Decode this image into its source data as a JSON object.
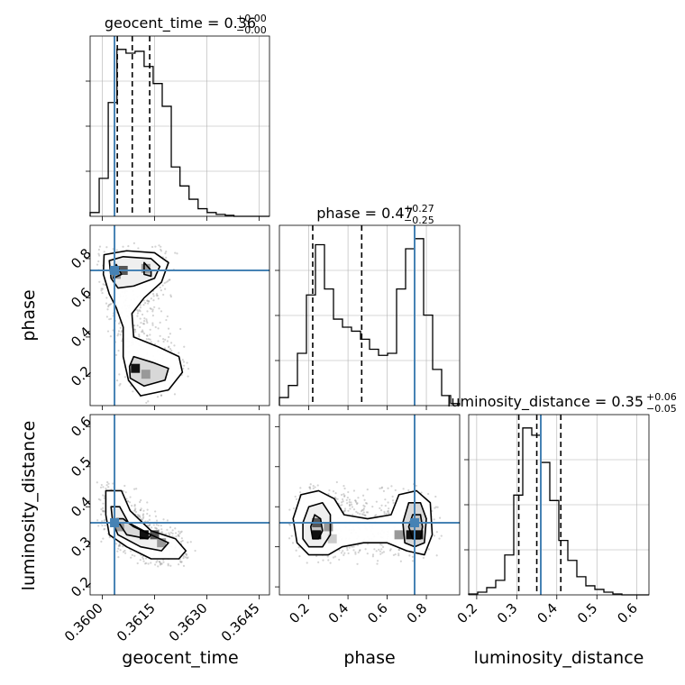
{
  "figure": {
    "panel_titles": {
      "geocent_time": {
        "label": "geocent_time = 0.36",
        "sup": "+0.00",
        "sub": "−0.00"
      },
      "phase": {
        "label": "phase = 0.47",
        "sup": "+0.27",
        "sub": "−0.25"
      },
      "luminosity_distance": {
        "label": "luminosity_distance = 0.35",
        "sup": "+0.06",
        "sub": "−0.05"
      }
    },
    "axis_labels": {
      "x": [
        "geocent_time",
        "phase",
        "luminosity_distance"
      ],
      "y": [
        "phase",
        "luminosity_distance"
      ]
    },
    "colors": {
      "truth": "#4682b4",
      "hist": "#000000",
      "grid": "#b0b0b0",
      "points": "#808080"
    }
  },
  "chart_data": [
    {
      "type": "histogram",
      "parameter": "geocent_time",
      "range": [
        0.35965,
        0.3648
      ],
      "ticks": [
        0.36,
        0.3615,
        0.363,
        0.3645
      ],
      "tick_labels": [
        "0.3600",
        "0.3615",
        "0.3630",
        "0.3645"
      ],
      "bin_edges": [
        0.35965,
        0.35991,
        0.36017,
        0.36042,
        0.36068,
        0.36094,
        0.3612,
        0.36146,
        0.36172,
        0.36198,
        0.36223,
        0.36249,
        0.36275,
        0.36301,
        0.36327,
        0.36353,
        0.36378,
        0.36404,
        0.3643,
        0.36456,
        0.3648
      ],
      "counts": [
        2,
        20,
        60,
        88,
        86,
        87,
        79,
        70,
        58,
        26,
        16,
        9,
        4,
        2,
        1,
        0.5,
        0,
        0,
        0,
        0
      ],
      "quantiles": [
        0.36043,
        0.36086,
        0.36136
      ],
      "truth": 0.36035,
      "grid": true
    },
    {
      "type": "histogram",
      "parameter": "phase",
      "range": [
        0.05,
        0.97
      ],
      "ticks": [
        0.2,
        0.4,
        0.6,
        0.8
      ],
      "tick_labels": [
        "0.2",
        "0.4",
        "0.6",
        "0.8"
      ],
      "bin_edges": [
        0.05,
        0.096,
        0.142,
        0.188,
        0.234,
        0.28,
        0.326,
        0.372,
        0.418,
        0.464,
        0.51,
        0.556,
        0.602,
        0.648,
        0.694,
        0.74,
        0.786,
        0.832,
        0.878,
        0.924,
        0.97
      ],
      "counts": [
        4,
        10,
        26,
        55,
        80,
        58,
        43,
        39,
        37,
        33,
        28,
        25,
        26,
        58,
        78,
        83,
        45,
        18,
        5,
        1
      ],
      "quantiles": [
        0.22,
        0.47,
        0.74
      ],
      "truth": 0.74,
      "grid": true
    },
    {
      "type": "histogram",
      "parameter": "luminosity_distance",
      "range": [
        0.18,
        0.63
      ],
      "ticks": [
        0.2,
        0.3,
        0.4,
        0.5,
        0.6
      ],
      "tick_labels": [
        "0.2",
        "0.3",
        "0.4",
        "0.5",
        "0.6"
      ],
      "bin_edges": [
        0.18,
        0.2025,
        0.225,
        0.2475,
        0.27,
        0.2925,
        0.315,
        0.3375,
        0.36,
        0.3825,
        0.405,
        0.4275,
        0.45,
        0.4725,
        0.495,
        0.5175,
        0.54,
        0.5625,
        0.585,
        0.6075,
        0.63
      ],
      "counts": [
        0.5,
        1.5,
        4,
        8,
        22,
        55,
        92,
        88,
        73,
        52,
        30,
        19,
        10,
        5,
        3,
        1.5,
        0.5,
        0,
        0,
        0
      ],
      "quantiles": [
        0.305,
        0.35,
        0.41
      ],
      "truth": 0.36,
      "grid": true
    },
    {
      "type": "scatter_density",
      "x_parameter": "geocent_time",
      "y_parameter": "phase",
      "xlim": [
        0.35965,
        0.3648
      ],
      "ylim": [
        0.05,
        0.97
      ],
      "y_ticks": [
        0.2,
        0.4,
        0.6,
        0.8
      ],
      "y_tick_labels": [
        "0.2",
        "0.4",
        "0.6",
        "0.8"
      ],
      "truth": [
        0.36035,
        0.74
      ],
      "contours": [
        [
          [
            0.36005,
            0.82
          ],
          [
            0.3607,
            0.84
          ],
          [
            0.3615,
            0.83
          ],
          [
            0.3619,
            0.78
          ],
          [
            0.3617,
            0.68
          ],
          [
            0.3612,
            0.6
          ],
          [
            0.36085,
            0.52
          ],
          [
            0.3609,
            0.4
          ],
          [
            0.3616,
            0.35
          ],
          [
            0.3622,
            0.3
          ],
          [
            0.3623,
            0.22
          ],
          [
            0.3619,
            0.13
          ],
          [
            0.3611,
            0.1
          ],
          [
            0.36075,
            0.18
          ],
          [
            0.3606,
            0.3
          ],
          [
            0.3606,
            0.45
          ],
          [
            0.3604,
            0.55
          ],
          [
            0.3602,
            0.62
          ],
          [
            0.36003,
            0.72
          ]
        ],
        [
          [
            0.3602,
            0.79
          ],
          [
            0.3606,
            0.81
          ],
          [
            0.3614,
            0.8
          ],
          [
            0.36165,
            0.76
          ],
          [
            0.3615,
            0.7
          ],
          [
            0.3609,
            0.66
          ],
          [
            0.36045,
            0.65
          ],
          [
            0.36025,
            0.7
          ]
        ],
        [
          [
            0.3609,
            0.3
          ],
          [
            0.36145,
            0.27
          ],
          [
            0.3619,
            0.24
          ],
          [
            0.3618,
            0.18
          ],
          [
            0.3612,
            0.15
          ],
          [
            0.3608,
            0.19
          ],
          [
            0.36078,
            0.25
          ]
        ],
        [
          [
            0.36032,
            0.7
          ],
          [
            0.3604,
            0.77
          ],
          [
            0.36055,
            0.72
          ]
        ],
        [
          [
            0.3612,
            0.78
          ],
          [
            0.3614,
            0.74
          ],
          [
            0.3614,
            0.71
          ],
          [
            0.3612,
            0.72
          ]
        ]
      ],
      "density_blocks": [
        [
          0.3606,
          0.74,
          3
        ],
        [
          0.36125,
          0.75,
          2
        ],
        [
          0.36095,
          0.24,
          4
        ],
        [
          0.36125,
          0.21,
          2
        ],
        [
          0.3604,
          0.72,
          2
        ]
      ],
      "grid": false
    },
    {
      "type": "scatter_density",
      "x_parameter": "geocent_time",
      "y_parameter": "luminosity_distance",
      "xlim": [
        0.35965,
        0.3648
      ],
      "ylim": [
        0.18,
        0.63
      ],
      "y_ticks": [
        0.2,
        0.3,
        0.4,
        0.5,
        0.6
      ],
      "y_tick_labels": [
        "0.2",
        "0.3",
        "0.4",
        "0.5",
        "0.6"
      ],
      "truth": [
        0.36035,
        0.36
      ],
      "contours": [
        [
          [
            0.3601,
            0.44
          ],
          [
            0.36055,
            0.44
          ],
          [
            0.3608,
            0.39
          ],
          [
            0.3614,
            0.34
          ],
          [
            0.3621,
            0.32
          ],
          [
            0.3624,
            0.29
          ],
          [
            0.3622,
            0.27
          ],
          [
            0.3614,
            0.27
          ],
          [
            0.3607,
            0.3
          ],
          [
            0.3602,
            0.33
          ],
          [
            0.3601,
            0.38
          ]
        ],
        [
          [
            0.36025,
            0.4
          ],
          [
            0.3605,
            0.4
          ],
          [
            0.36075,
            0.36
          ],
          [
            0.3614,
            0.33
          ],
          [
            0.3619,
            0.31
          ],
          [
            0.3617,
            0.29
          ],
          [
            0.3611,
            0.3
          ],
          [
            0.36045,
            0.33
          ],
          [
            0.3603,
            0.36
          ]
        ],
        [
          [
            0.3604,
            0.37
          ],
          [
            0.3606,
            0.37
          ],
          [
            0.3609,
            0.35
          ],
          [
            0.3614,
            0.33
          ],
          [
            0.3613,
            0.32
          ],
          [
            0.3607,
            0.33
          ]
        ]
      ],
      "density_blocks": [
        [
          0.3612,
          0.33,
          4
        ],
        [
          0.3615,
          0.33,
          3
        ],
        [
          0.3605,
          0.35,
          2
        ],
        [
          0.3617,
          0.31,
          2
        ]
      ],
      "grid": false
    },
    {
      "type": "scatter_density",
      "x_parameter": "phase",
      "y_parameter": "luminosity_distance",
      "xlim": [
        0.05,
        0.97
      ],
      "ylim": [
        0.18,
        0.63
      ],
      "truth": [
        0.74,
        0.36
      ],
      "contours": [
        [
          [
            0.12,
            0.37
          ],
          [
            0.16,
            0.43
          ],
          [
            0.25,
            0.44
          ],
          [
            0.33,
            0.42
          ],
          [
            0.38,
            0.38
          ],
          [
            0.5,
            0.37
          ],
          [
            0.62,
            0.38
          ],
          [
            0.66,
            0.43
          ],
          [
            0.75,
            0.44
          ],
          [
            0.82,
            0.41
          ],
          [
            0.83,
            0.33
          ],
          [
            0.79,
            0.28
          ],
          [
            0.7,
            0.29
          ],
          [
            0.6,
            0.31
          ],
          [
            0.48,
            0.31
          ],
          [
            0.37,
            0.3
          ],
          [
            0.3,
            0.28
          ],
          [
            0.2,
            0.28
          ],
          [
            0.14,
            0.31
          ]
        ],
        [
          [
            0.17,
            0.36
          ],
          [
            0.2,
            0.4
          ],
          [
            0.27,
            0.41
          ],
          [
            0.31,
            0.38
          ],
          [
            0.31,
            0.33
          ],
          [
            0.27,
            0.3
          ],
          [
            0.2,
            0.3
          ],
          [
            0.17,
            0.32
          ]
        ],
        [
          [
            0.68,
            0.36
          ],
          [
            0.71,
            0.41
          ],
          [
            0.77,
            0.41
          ],
          [
            0.8,
            0.37
          ],
          [
            0.79,
            0.31
          ],
          [
            0.74,
            0.3
          ],
          [
            0.69,
            0.31
          ]
        ],
        [
          [
            0.21,
            0.35
          ],
          [
            0.23,
            0.38
          ],
          [
            0.26,
            0.37
          ],
          [
            0.27,
            0.34
          ],
          [
            0.25,
            0.32
          ],
          [
            0.22,
            0.32
          ]
        ],
        [
          [
            0.71,
            0.35
          ],
          [
            0.73,
            0.38
          ],
          [
            0.77,
            0.38
          ],
          [
            0.78,
            0.35
          ],
          [
            0.77,
            0.32
          ],
          [
            0.73,
            0.32
          ]
        ]
      ],
      "density_blocks": [
        [
          0.24,
          0.33,
          4
        ],
        [
          0.24,
          0.36,
          3
        ],
        [
          0.72,
          0.33,
          4
        ],
        [
          0.76,
          0.33,
          4
        ],
        [
          0.74,
          0.36,
          3
        ],
        [
          0.3,
          0.35,
          2
        ],
        [
          0.32,
          0.32,
          1
        ],
        [
          0.66,
          0.33,
          2
        ]
      ],
      "grid": false
    }
  ]
}
